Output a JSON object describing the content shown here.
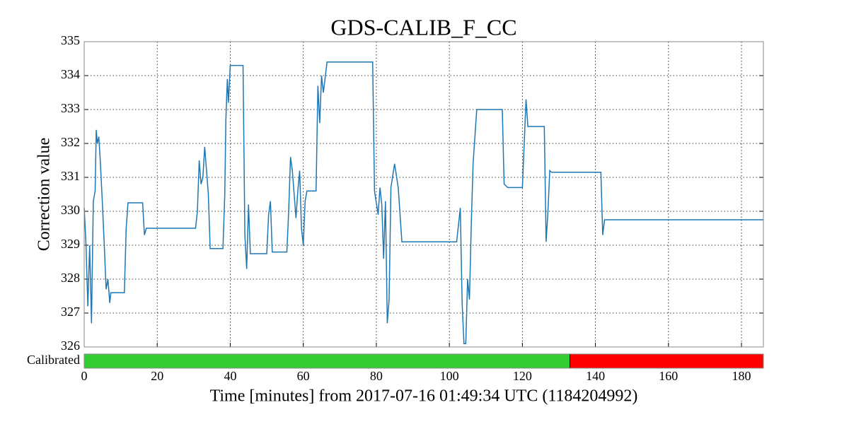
{
  "chart_data": {
    "type": "line",
    "title": "GDS-CALIB_F_CC",
    "y_label": "Correction value",
    "x_label": "Time [minutes] from 2017-07-16 01:49:34 UTC (1184204992)",
    "xlim": [
      0,
      186
    ],
    "ylim": [
      326,
      335
    ],
    "xticks": [
      0,
      20,
      40,
      60,
      80,
      100,
      120,
      140,
      160,
      180
    ],
    "yticks": [
      326,
      327,
      328,
      329,
      330,
      331,
      332,
      333,
      334,
      335
    ],
    "grid": true,
    "color": "#1f77b4",
    "x": [
      0,
      0.5,
      1,
      1.5,
      2,
      2.5,
      3,
      3.3,
      3.6,
      4,
      4.4,
      5,
      5.5,
      6,
      6.5,
      7,
      7.3,
      11,
      11.5,
      12,
      16,
      16.5,
      17,
      30.5,
      31,
      31.5,
      32,
      32.5,
      33,
      34,
      34.5,
      38,
      38.5,
      38.8,
      39.2,
      39.5,
      40,
      43.5,
      44,
      44.5,
      45,
      45.5,
      50,
      50.5,
      51,
      51.5,
      55.5,
      56,
      56.5,
      57,
      57.5,
      58,
      58.5,
      59,
      59.5,
      60,
      60.5,
      61,
      63.5,
      64,
      64.5,
      65,
      65.5,
      66.5,
      79,
      79.5,
      80.5,
      81,
      81.5,
      82,
      82.5,
      83,
      83.5,
      84,
      85,
      86,
      87,
      102,
      103,
      103.5,
      104,
      104.5,
      105,
      105.5,
      106,
      106.5,
      107.5,
      114.5,
      115,
      116,
      120,
      121,
      121.5,
      126,
      126.5,
      127,
      127.5,
      128,
      141.5,
      142,
      142.5,
      186
    ],
    "values": [
      330.1,
      329.0,
      327.2,
      329.0,
      326.7,
      330.3,
      330.6,
      332.4,
      332.0,
      332.2,
      331.5,
      330.2,
      329.0,
      327.7,
      328.0,
      327.3,
      327.6,
      327.6,
      329.5,
      330.25,
      330.25,
      329.3,
      329.5,
      329.5,
      330.0,
      331.5,
      330.8,
      331.0,
      331.9,
      330.5,
      328.9,
      328.9,
      330.5,
      332.7,
      333.9,
      333.2,
      334.3,
      334.3,
      329.3,
      328.3,
      330.2,
      328.75,
      328.75,
      329.9,
      330.3,
      328.8,
      328.8,
      330.0,
      331.6,
      331.2,
      330.5,
      329.8,
      330.6,
      331.2,
      329.5,
      329.0,
      330.3,
      330.6,
      330.6,
      333.7,
      332.6,
      334.0,
      333.5,
      334.4,
      334.4,
      330.6,
      329.9,
      330.7,
      330.2,
      328.6,
      330.3,
      326.7,
      327.4,
      330.7,
      331.4,
      330.7,
      329.1,
      329.1,
      330.1,
      327.3,
      326.1,
      326.1,
      328.0,
      327.4,
      329.6,
      331.4,
      333.0,
      333.0,
      330.8,
      330.7,
      330.7,
      333.3,
      332.5,
      332.5,
      329.1,
      330.0,
      331.2,
      331.15,
      331.15,
      329.3,
      329.75,
      329.75
    ],
    "segments": {
      "label": "Calibrated",
      "spans": [
        [
          0,
          133
        ],
        [
          133,
          186
        ]
      ],
      "colors": [
        "#33cc33",
        "#ff0000"
      ]
    }
  }
}
